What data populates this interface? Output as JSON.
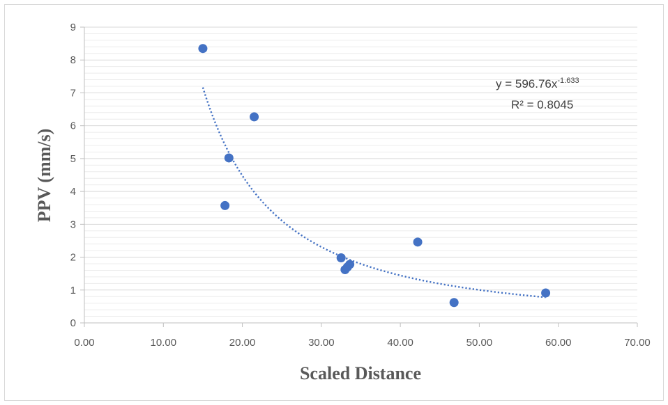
{
  "chart_data": {
    "type": "scatter",
    "xlabel": "Scaled Distance",
    "ylabel": "PPV (mm/s)",
    "xlim": [
      0,
      70
    ],
    "ylim": [
      0,
      9
    ],
    "xticks": [
      "0.00",
      "10.00",
      "20.00",
      "30.00",
      "40.00",
      "50.00",
      "60.00",
      "70.00"
    ],
    "yticks": [
      "0",
      "1",
      "2",
      "3",
      "4",
      "5",
      "6",
      "7",
      "8",
      "9"
    ],
    "points": [
      {
        "x": 15.0,
        "y": 8.35
      },
      {
        "x": 17.8,
        "y": 3.57
      },
      {
        "x": 18.3,
        "y": 5.02
      },
      {
        "x": 21.5,
        "y": 6.27
      },
      {
        "x": 32.5,
        "y": 1.98
      },
      {
        "x": 33.0,
        "y": 1.62
      },
      {
        "x": 33.3,
        "y": 1.7
      },
      {
        "x": 33.6,
        "y": 1.78
      },
      {
        "x": 42.2,
        "y": 2.46
      },
      {
        "x": 46.8,
        "y": 0.62
      },
      {
        "x": 58.4,
        "y": 0.91
      }
    ],
    "trendline": {
      "type": "power",
      "a": 596.76,
      "b": -1.633,
      "x_range": [
        15.0,
        58.4
      ],
      "equation_prefix": "y = 596.76x",
      "equation_exponent": "-1.633",
      "r2_label": "R² = 0.8045"
    },
    "gridlines": "major and minor horizontal",
    "colors": {
      "marker": "#4472c4",
      "trendline": "#4472c4",
      "major_grid": "#d9d9d9",
      "minor_grid": "#ececec",
      "axis": "#bfbfbf",
      "text": "#595959"
    }
  }
}
